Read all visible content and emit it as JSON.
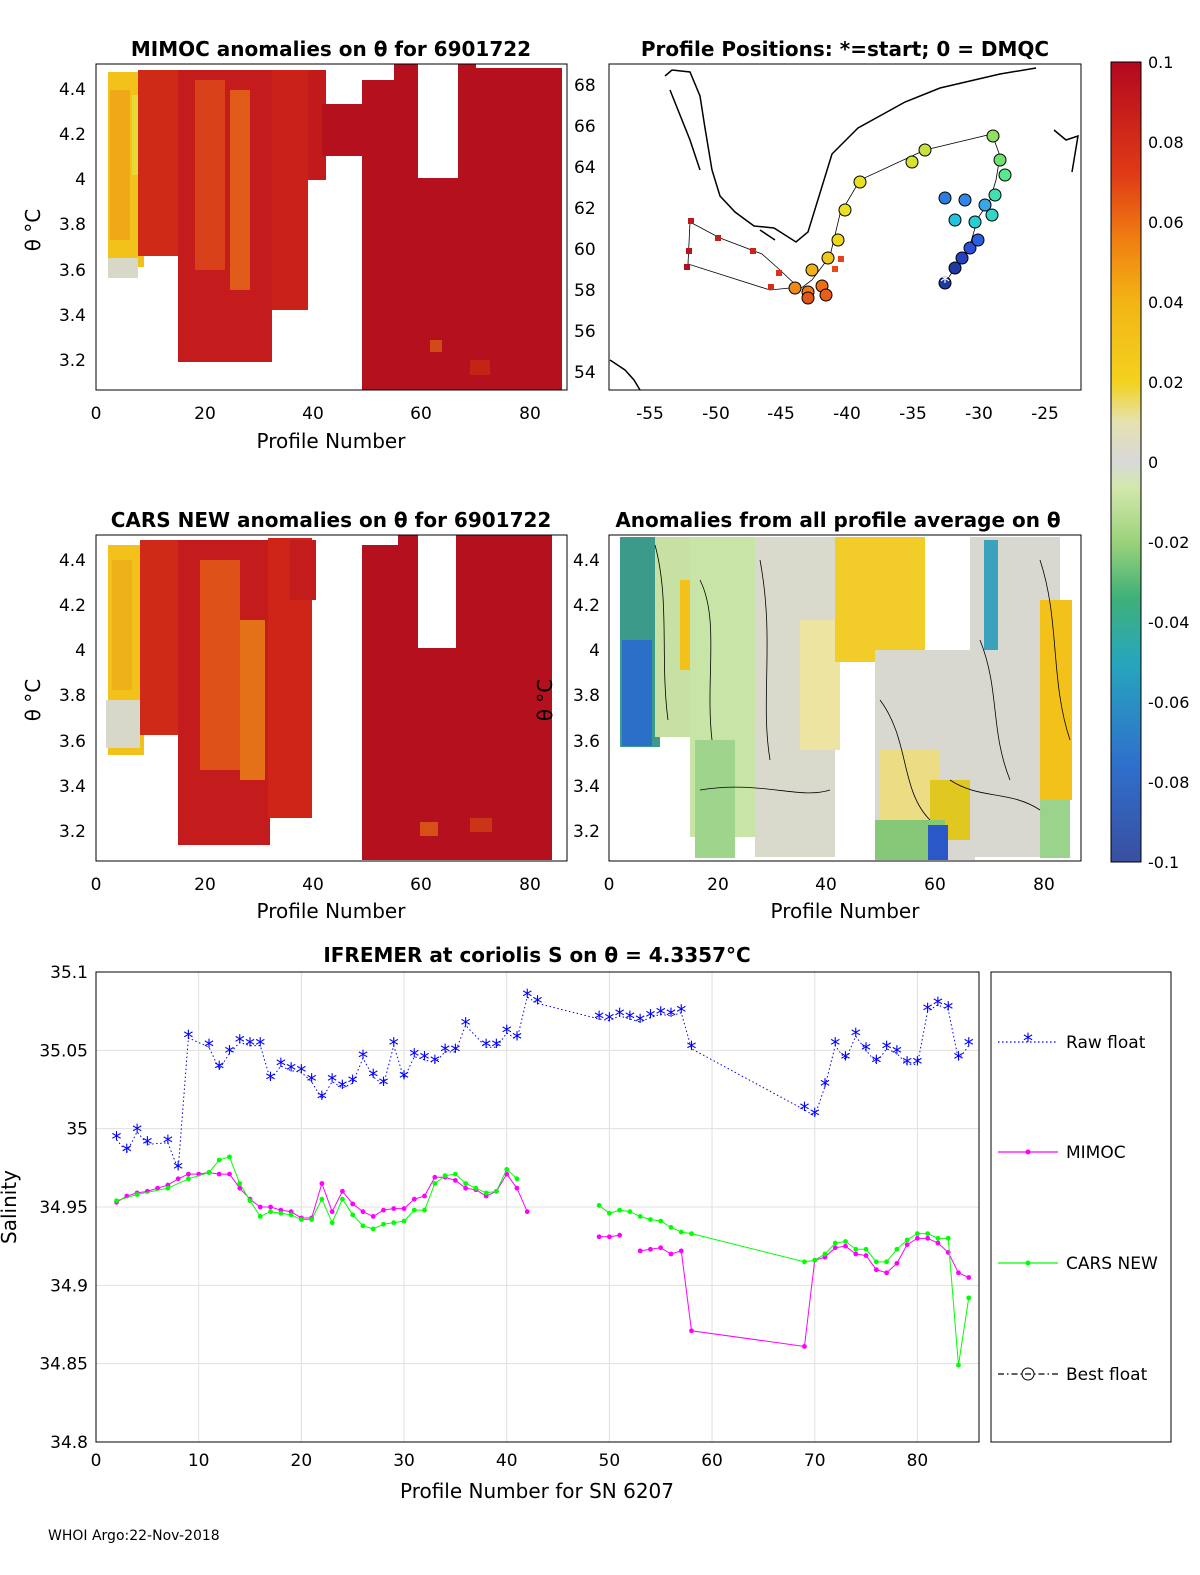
{
  "panels": {
    "p1": {
      "title": "MIMOC anomalies on θ  for 6901722",
      "xlabel": "Profile Number",
      "ylabel": "θ °C",
      "xticks": [
        "0",
        "20",
        "40",
        "60",
        "80"
      ],
      "yticks": [
        "3.2",
        "3.4",
        "3.6",
        "3.8",
        "4",
        "4.2",
        "4.4"
      ]
    },
    "p2": {
      "title": "Profile Positions: *=start; 0 = DMQC",
      "xticks": [
        "-55",
        "-50",
        "-45",
        "-40",
        "-35",
        "-30",
        "-25"
      ],
      "yticks": [
        "54",
        "56",
        "58",
        "60",
        "62",
        "64",
        "66",
        "68"
      ]
    },
    "p3": {
      "title": "CARS NEW anomalies on θ for 6901722",
      "xlabel": "Profile Number",
      "ylabel": "θ °C",
      "xticks": [
        "0",
        "20",
        "40",
        "60",
        "80"
      ],
      "yticks": [
        "3.2",
        "3.4",
        "3.6",
        "3.8",
        "4",
        "4.2",
        "4.4"
      ]
    },
    "p4": {
      "title": "Anomalies from all profile average on θ",
      "xlabel": "Profile Number",
      "ylabel": "θ °C",
      "xticks": [
        "0",
        "20",
        "40",
        "60",
        "80"
      ],
      "yticks": [
        "3.2",
        "3.4",
        "3.6",
        "3.8",
        "4",
        "4.2",
        "4.4"
      ]
    }
  },
  "colorbar": {
    "ticks": [
      "0.1",
      "0.08",
      "0.06",
      "0.04",
      "0.02",
      "0",
      "-0.02",
      "-0.04",
      "-0.06",
      "-0.08",
      "-0.1"
    ]
  },
  "footer": "WHOI Argo:22-Nov-2018",
  "chart_data": {
    "type": "line",
    "title": "IFREMER at coriolis S on θ = 4.3357°C",
    "xlabel": "Profile Number for SN 6207",
    "ylabel": "Salinity",
    "xlim": [
      0,
      86
    ],
    "ylim": [
      34.8,
      35.1
    ],
    "xticks": [
      "0",
      "10",
      "20",
      "30",
      "40",
      "50",
      "60",
      "70",
      "80"
    ],
    "yticks": [
      "34.8",
      "34.85",
      "34.9",
      "34.95",
      "35",
      "35.05",
      "35.1"
    ],
    "legend": [
      "Raw float",
      "MIMOC",
      "CARS NEW",
      "Best float"
    ],
    "series": [
      {
        "name": "Raw float",
        "color": "#0000ff",
        "marker": "asterisk",
        "x": [
          2,
          3,
          4,
          5,
          7,
          8,
          9,
          11,
          12,
          13,
          14,
          15,
          16,
          17,
          18,
          19,
          20,
          21,
          22,
          23,
          24,
          25,
          26,
          27,
          28,
          29,
          30,
          31,
          32,
          33,
          34,
          35,
          36,
          38,
          39,
          40,
          41,
          42,
          43,
          49,
          50,
          51,
          52,
          53,
          54,
          55,
          56,
          57,
          58,
          69,
          70,
          71,
          72,
          73,
          74,
          75,
          76,
          77,
          78,
          79,
          80,
          81,
          82,
          83,
          84,
          85
        ],
        "y": [
          34.993,
          34.985,
          34.998,
          34.99,
          34.991,
          34.974,
          35.058,
          35.052,
          35.038,
          35.048,
          35.055,
          35.053,
          35.053,
          35.031,
          35.04,
          35.037,
          35.036,
          35.03,
          35.019,
          35.03,
          35.026,
          35.029,
          35.045,
          35.033,
          35.028,
          35.053,
          35.032,
          35.046,
          35.044,
          35.042,
          35.049,
          35.049,
          35.066,
          35.052,
          35.052,
          35.061,
          35.057,
          35.084,
          35.08,
          35.07,
          35.069,
          35.072,
          35.07,
          35.068,
          35.071,
          35.073,
          35.072,
          35.074,
          35.051,
          35.012,
          35.008,
          35.027,
          35.053,
          35.044,
          35.059,
          35.05,
          35.042,
          35.051,
          35.048,
          35.041,
          35.041,
          35.075,
          35.079,
          35.076,
          35.044,
          35.053
        ]
      },
      {
        "name": "MIMOC",
        "color": "#ff00ff",
        "marker": "dot",
        "x": [
          [
            2,
            3,
            4,
            5,
            6,
            7,
            8,
            9,
            10,
            11,
            12,
            13,
            14,
            15,
            16,
            17,
            18,
            19,
            20,
            21,
            22,
            23,
            24,
            25,
            26,
            27,
            28,
            29,
            30,
            31,
            32,
            33,
            34,
            35,
            36,
            37,
            38,
            39,
            40,
            41,
            42
          ],
          [
            49,
            50,
            51
          ],
          [
            53,
            54,
            55,
            56,
            57,
            58,
            69,
            70,
            71,
            72,
            73,
            74,
            75,
            76,
            77,
            78,
            79,
            80,
            81,
            82,
            83,
            84,
            85
          ]
        ],
        "y": [
          [
            34.953,
            34.957,
            34.959,
            34.96,
            34.962,
            34.964,
            34.968,
            34.971,
            34.971,
            34.972,
            34.971,
            34.971,
            34.962,
            34.955,
            34.95,
            34.95,
            34.948,
            34.947,
            34.943,
            34.943,
            34.965,
            34.947,
            34.96,
            34.952,
            34.947,
            34.944,
            34.948,
            34.949,
            34.949,
            34.955,
            34.957,
            34.969,
            34.969,
            34.967,
            34.962,
            34.961,
            34.957,
            34.96,
            34.971,
            34.962,
            34.947
          ],
          [
            34.931,
            34.931,
            34.932
          ],
          [
            34.922,
            34.923,
            34.924,
            34.92,
            34.922,
            34.871,
            34.861,
            34.916,
            34.918,
            34.924,
            34.925,
            34.92,
            34.919,
            34.91,
            34.908,
            34.914,
            34.926,
            34.93,
            34.93,
            34.927,
            34.921,
            34.908,
            34.905
          ]
        ]
      },
      {
        "name": "CARS NEW",
        "color": "#00ff00",
        "marker": "dot",
        "x": [
          [
            2,
            4,
            7,
            9,
            11,
            12,
            13,
            14,
            15,
            16,
            17,
            18,
            19,
            20,
            21,
            22,
            23,
            24,
            25,
            26,
            27,
            28,
            29,
            30,
            31,
            32,
            33,
            34,
            35,
            36,
            37,
            38,
            39,
            40,
            41
          ],
          [
            49,
            50,
            51,
            52,
            53,
            54,
            55,
            56,
            57,
            58,
            69,
            70,
            71,
            72,
            73,
            74,
            75,
            76,
            77,
            78,
            79,
            80,
            81,
            82,
            83,
            84,
            85
          ]
        ],
        "y": [
          [
            34.954,
            34.958,
            34.962,
            34.968,
            34.972,
            34.98,
            34.982,
            34.965,
            34.954,
            34.944,
            34.947,
            34.946,
            34.945,
            34.942,
            34.942,
            34.955,
            34.94,
            34.955,
            34.945,
            34.938,
            34.936,
            34.939,
            34.94,
            34.941,
            34.948,
            34.948,
            34.965,
            34.97,
            34.971,
            34.965,
            34.962,
            34.959,
            34.96,
            34.974,
            34.968
          ],
          [
            34.951,
            34.946,
            34.948,
            34.947,
            34.944,
            34.942,
            34.941,
            34.937,
            34.934,
            34.933,
            34.915,
            34.916,
            34.92,
            34.927,
            34.928,
            34.923,
            34.923,
            34.915,
            34.915,
            34.923,
            34.929,
            34.933,
            34.933,
            34.93,
            34.93,
            34.849,
            34.892
          ]
        ]
      },
      {
        "name": "Best float",
        "color": "#000000",
        "marker": "circle",
        "x": [],
        "y": []
      }
    ]
  }
}
